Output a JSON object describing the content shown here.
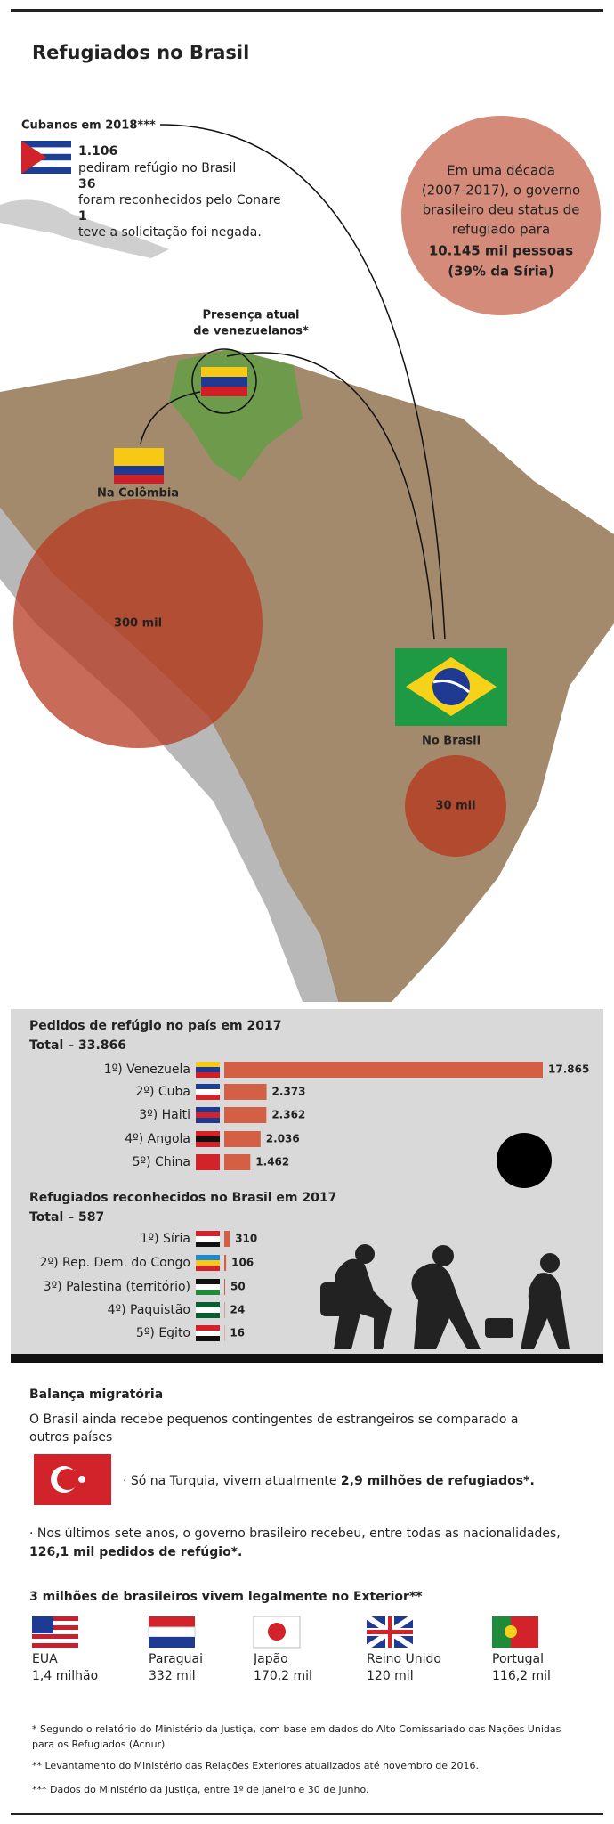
{
  "header": {
    "title": "Refugiados no Brasil"
  },
  "cuba": {
    "title": "Cubanos em 2018***",
    "lines": [
      "1.106",
      "pediram refúgio no Brasil",
      "36",
      "foram reconhecidos pelo Conare",
      "1",
      "teve a solicitação foi negada."
    ]
  },
  "decade": {
    "lines": [
      "Em uma década",
      "(2007-2017), o governo",
      "brasileiro deu status de",
      "refugiado para"
    ],
    "bold": [
      "10.145 mil pessoas",
      "(39% da Síria)"
    ]
  },
  "map": {
    "venezuela_label": [
      "Presença atual",
      "de venezuelanos*"
    ],
    "colombia_label": "Na Colômbia",
    "colombia_value": "300 mil",
    "brazil_label": "No Brasil",
    "brazil_value": "30 mil"
  },
  "chart_data": [
    {
      "type": "bar",
      "title": "Pedidos de refúgio no país em 2017",
      "subtitle": "Total – 33.866",
      "categories": [
        "1º) Venezuela",
        "2º) Cuba",
        "3º) Haiti",
        "4º) Angola",
        "5º) China"
      ],
      "values": [
        17865,
        2373,
        2362,
        2036,
        1462
      ],
      "value_labels": [
        "17.865",
        "2.373",
        "2.362",
        "2.036",
        "1.462"
      ],
      "color": "#d35f45"
    },
    {
      "type": "bar",
      "title": "Refugiados reconhecidos no Brasil em 2017",
      "subtitle": "Total – 587",
      "categories": [
        "1º) Síria",
        "2º) Rep. Dem. do Congo",
        "3º) Palestina (território)",
        "4º) Paquistão",
        "5º) Egito"
      ],
      "values": [
        310,
        106,
        50,
        24,
        16
      ],
      "color": "#d35f45"
    }
  ],
  "balance": {
    "title": "Balança migratória",
    "intro": [
      "O Brasil ainda recebe pequenos contingentes de estrangeiros se comparado a",
      "outros países"
    ],
    "turkey": [
      "· Só na Turquia, vivem atualmente ",
      "2,9 milhões de refugiados*."
    ],
    "brazil": [
      "· Nos últimos sete anos, o governo brasileiro recebeu, entre todas as nacionalidades,",
      "126,1 mil pedidos de refúgio*."
    ]
  },
  "abroad": {
    "title": "3 milhões de brasileiros vivem legalmente no Exterior**",
    "countries": [
      {
        "name": "EUA",
        "value": "1,4 milhão"
      },
      {
        "name": "Paraguai",
        "value": "332 mil"
      },
      {
        "name": "Japão",
        "value": "170,2 mil"
      },
      {
        "name": "Reino Unido",
        "value": "120 mil"
      },
      {
        "name": "Portugal",
        "value": "116,2 mil"
      }
    ]
  },
  "footnotes": [
    "* Segundo o relatório do Ministério da Justiça, com base em dados do Alto Comissariado das Nações Unidas",
    "para os Refugiados (Acnur)",
    "** Levantamento do Ministério das Relações Exteriores atualizados até novembro de 2016.",
    "*** Dados do Ministério da Justiça, entre  1º de janeiro e 30 de junho."
  ]
}
